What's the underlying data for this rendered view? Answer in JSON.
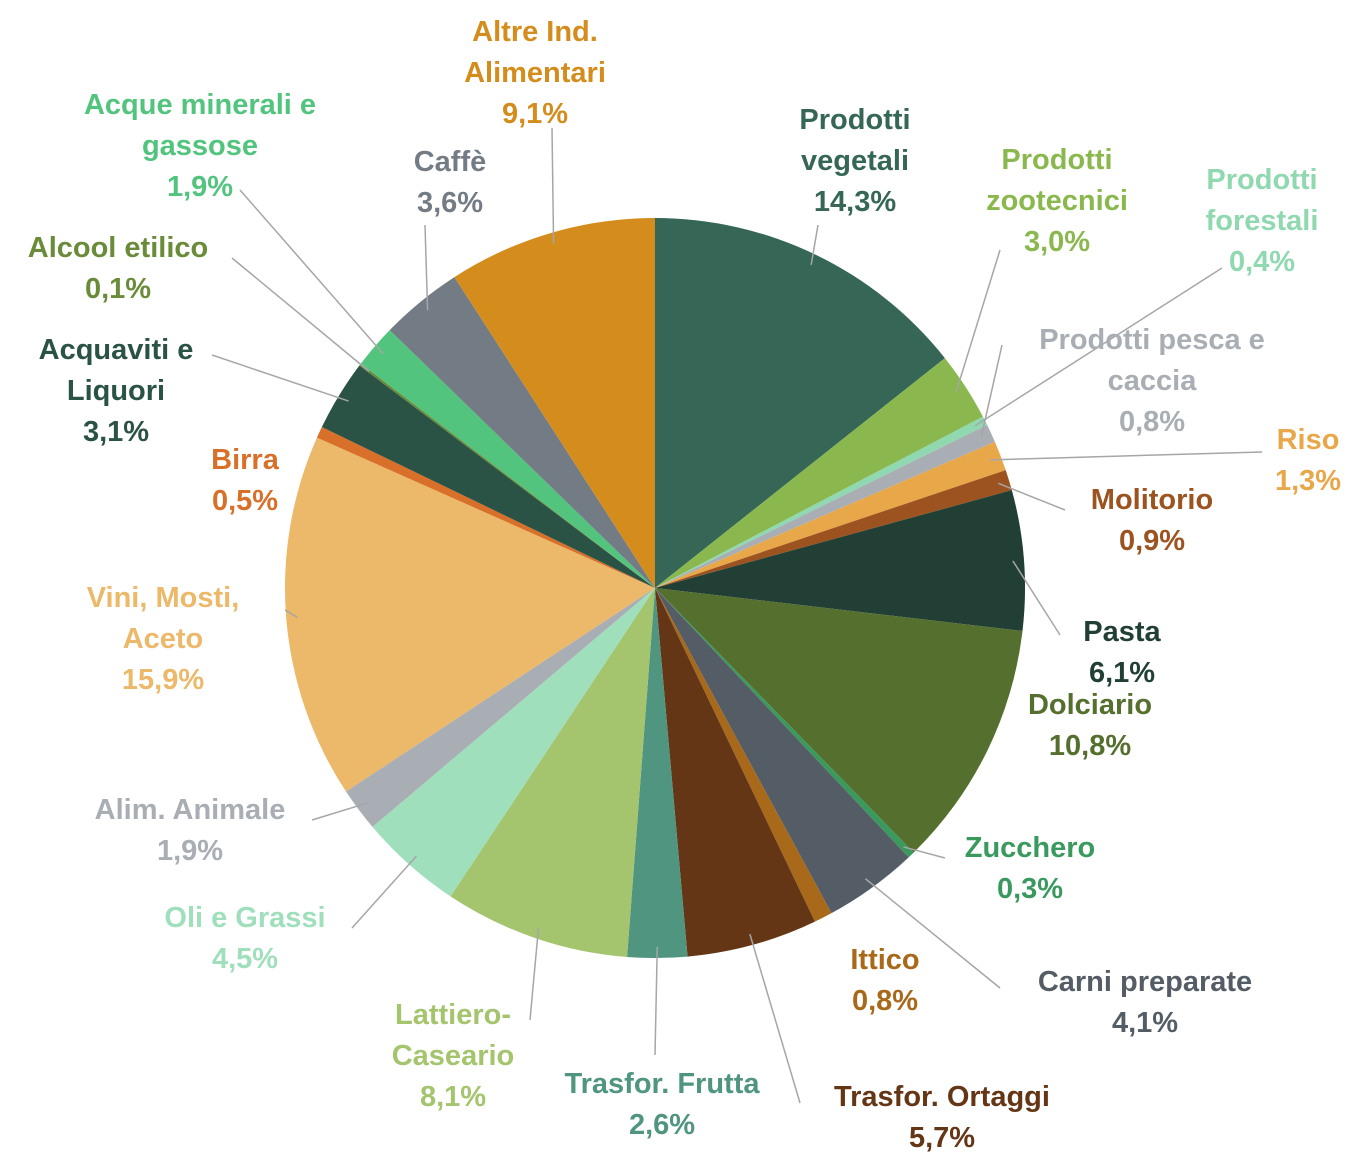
{
  "chart_data": {
    "type": "pie",
    "categories": [
      "Prodotti vegetali",
      "Prodotti zootecnici",
      "Prodotti forestali",
      "Prodotti pesca e caccia",
      "Riso",
      "Molitorio",
      "Pasta",
      "Dolciario",
      "Zucchero",
      "Carni preparate",
      "Ittico",
      "Trasfor. Ortaggi",
      "Trasfor. Frutta",
      "Lattiero-Caseario",
      "Oli e Grassi",
      "Alim. Animale",
      "Vini, Mosti, Aceto",
      "Birra",
      "Acquaviti e Liquori",
      "Alcool etilico",
      "Acque minerali e gassose",
      "Caffè",
      "Altre Ind. Alimentari"
    ],
    "values": [
      14.3,
      3.0,
      0.4,
      0.8,
      1.3,
      0.9,
      6.1,
      10.8,
      0.3,
      4.1,
      0.8,
      5.7,
      2.6,
      8.1,
      4.5,
      1.9,
      15.9,
      0.5,
      3.1,
      0.1,
      1.9,
      3.6,
      9.1
    ],
    "value_labels": [
      "14,3%",
      "3,0%",
      "0,4%",
      "0,8%",
      "1,3%",
      "0,9%",
      "6,1%",
      "10,8%",
      "0,3%",
      "4,1%",
      "0,8%",
      "5,7%",
      "2,6%",
      "8,1%",
      "4,5%",
      "1,9%",
      "15,9%",
      "0,5%",
      "3,1%",
      "0,1%",
      "1,9%",
      "3,6%",
      "9,1%"
    ],
    "colors": [
      "#356656",
      "#8ab84e",
      "#8fd8b0",
      "#a8aeb4",
      "#e8a84a",
      "#9c531f",
      "#223f36",
      "#556f2e",
      "#3a9a5e",
      "#545d66",
      "#a8691a",
      "#643615",
      "#4f9580",
      "#a4c46e",
      "#a0dfbc",
      "#a8aeb4",
      "#ecb86a",
      "#d8702a",
      "#2a5245",
      "#6a8c3a",
      "#52c47e",
      "#737c85",
      "#d48c1c"
    ]
  }
}
